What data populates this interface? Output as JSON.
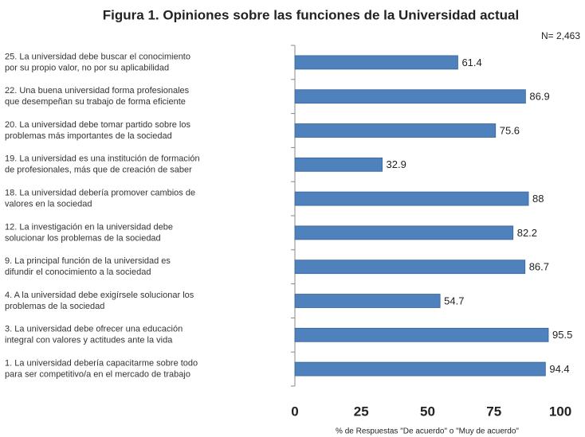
{
  "chart_data": {
    "type": "barh",
    "title": "Figura 1. Opiniones sobre las funciones de la Universidad actual",
    "subtitle": "N= 2,463",
    "x_label": "% de Respuestas \"De acuerdo\" o \"Muy de acuerdo\"",
    "categories": [
      [
        "25. La universidad debe buscar el conocimiento",
        "por su propio valor, no por su aplicabilidad"
      ],
      [
        "22. Una buena universidad forma profesionales",
        "que desempeñan su trabajo de forma eficiente"
      ],
      [
        "20. La universidad debe tomar partido sobre los",
        "problemas más importantes de la sociedad"
      ],
      [
        "19. La universidad es una institución de formación",
        "de profesionales, más que de creación de saber"
      ],
      [
        "18. La universidad debería promover cambios de",
        "valores en la sociedad"
      ],
      [
        "12. La investigación en la universidad debe",
        "solucionar los problemas de la sociedad"
      ],
      [
        "9. La principal función de la universidad es",
        "difundir el conocimiento a la sociedad"
      ],
      [
        "4. A la universidad debe exigírsele solucionar los",
        "problemas de la sociedad"
      ],
      [
        "3. La universidad debe ofrecer una educación",
        "integral con valores y actitudes ante la vida"
      ],
      [
        "1. La universidad debería capacitarme sobre todo",
        "para ser competitivo/a en el mercado de trabajo"
      ]
    ],
    "values": [
      61.4,
      86.9,
      75.6,
      32.9,
      88,
      82.2,
      86.7,
      54.7,
      95.5,
      94.4
    ],
    "color": "#4f81bd",
    "xlim": [
      0,
      100
    ],
    "xticks": [
      0,
      25,
      50,
      75,
      100
    ],
    "grid": false
  }
}
